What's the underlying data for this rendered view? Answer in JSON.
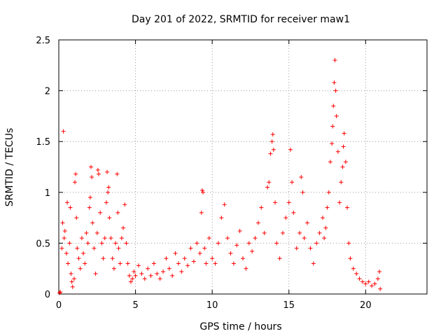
{
  "chart_data": {
    "type": "scatter",
    "title": "Day 201 of 2022, SRMTID for receiver maw1",
    "xlabel": "GPS time / hours",
    "ylabel": "SRMTID / TECUs",
    "xlim": [
      0,
      24
    ],
    "ylim": [
      0,
      2.5
    ],
    "x_ticks": [
      0,
      5,
      10,
      15,
      20
    ],
    "x_tick_labels": [
      "0",
      "5",
      "10",
      "15",
      "20"
    ],
    "y_ticks": [
      0,
      0.5,
      1,
      1.5,
      2,
      2.5
    ],
    "y_tick_labels": [
      "0",
      "0.5",
      "1",
      "1.5",
      "2",
      "2.5"
    ],
    "grid": true,
    "marker": "plus",
    "series_color": "#ff0000",
    "series": [
      {
        "name": "SRMTID",
        "points": [
          [
            0.05,
            0.01
          ],
          [
            0.1,
            0.02
          ],
          [
            0.2,
            0.45
          ],
          [
            0.25,
            0.7
          ],
          [
            0.3,
            1.6
          ],
          [
            0.35,
            0.55
          ],
          [
            0.4,
            0.62
          ],
          [
            0.5,
            0.4
          ],
          [
            0.55,
            0.9
          ],
          [
            0.6,
            0.3
          ],
          [
            0.7,
            0.5
          ],
          [
            0.75,
            0.85
          ],
          [
            0.8,
            0.2
          ],
          [
            0.85,
            0.12
          ],
          [
            0.9,
            0.07
          ],
          [
            1.0,
            0.15
          ],
          [
            1.05,
            1.1
          ],
          [
            1.1,
            1.18
          ],
          [
            1.15,
            0.75
          ],
          [
            1.2,
            0.45
          ],
          [
            1.3,
            0.35
          ],
          [
            1.4,
            0.25
          ],
          [
            1.5,
            0.55
          ],
          [
            1.6,
            0.4
          ],
          [
            1.7,
            0.3
          ],
          [
            1.8,
            0.6
          ],
          [
            1.9,
            0.5
          ],
          [
            2.0,
            0.85
          ],
          [
            2.05,
            0.95
          ],
          [
            2.1,
            1.25
          ],
          [
            2.15,
            1.15
          ],
          [
            2.2,
            0.7
          ],
          [
            2.3,
            0.45
          ],
          [
            2.4,
            0.2
          ],
          [
            2.5,
            0.6
          ],
          [
            2.55,
            1.22
          ],
          [
            2.6,
            1.18
          ],
          [
            2.7,
            0.8
          ],
          [
            2.8,
            0.5
          ],
          [
            2.9,
            0.35
          ],
          [
            3.0,
            0.55
          ],
          [
            3.1,
            0.9
          ],
          [
            3.15,
            1.2
          ],
          [
            3.2,
            1.0
          ],
          [
            3.25,
            1.05
          ],
          [
            3.3,
            0.75
          ],
          [
            3.4,
            0.55
          ],
          [
            3.5,
            0.35
          ],
          [
            3.6,
            0.25
          ],
          [
            3.7,
            0.5
          ],
          [
            3.8,
            1.18
          ],
          [
            3.85,
            0.8
          ],
          [
            3.9,
            0.45
          ],
          [
            4.0,
            0.3
          ],
          [
            4.1,
            0.55
          ],
          [
            4.2,
            0.65
          ],
          [
            4.3,
            0.88
          ],
          [
            4.4,
            0.5
          ],
          [
            4.5,
            0.3
          ],
          [
            4.6,
            0.18
          ],
          [
            4.7,
            0.12
          ],
          [
            4.8,
            0.15
          ],
          [
            4.9,
            0.22
          ],
          [
            5.0,
            0.18
          ],
          [
            5.2,
            0.28
          ],
          [
            5.4,
            0.2
          ],
          [
            5.6,
            0.15
          ],
          [
            5.8,
            0.25
          ],
          [
            6.0,
            0.18
          ],
          [
            6.2,
            0.3
          ],
          [
            6.4,
            0.2
          ],
          [
            6.6,
            0.15
          ],
          [
            6.8,
            0.22
          ],
          [
            7.0,
            0.35
          ],
          [
            7.2,
            0.25
          ],
          [
            7.4,
            0.18
          ],
          [
            7.6,
            0.4
          ],
          [
            7.8,
            0.3
          ],
          [
            8.0,
            0.22
          ],
          [
            8.2,
            0.35
          ],
          [
            8.4,
            0.28
          ],
          [
            8.6,
            0.45
          ],
          [
            8.8,
            0.32
          ],
          [
            9.0,
            0.5
          ],
          [
            9.2,
            0.4
          ],
          [
            9.3,
            0.8
          ],
          [
            9.35,
            1.02
          ],
          [
            9.4,
            1.0
          ],
          [
            9.5,
            0.45
          ],
          [
            9.6,
            0.3
          ],
          [
            9.8,
            0.55
          ],
          [
            10.0,
            0.35
          ],
          [
            10.2,
            0.3
          ],
          [
            10.4,
            0.5
          ],
          [
            10.6,
            0.75
          ],
          [
            10.8,
            0.88
          ],
          [
            11.0,
            0.55
          ],
          [
            11.2,
            0.4
          ],
          [
            11.4,
            0.3
          ],
          [
            11.6,
            0.48
          ],
          [
            11.8,
            0.62
          ],
          [
            12.0,
            0.35
          ],
          [
            12.2,
            0.25
          ],
          [
            12.4,
            0.5
          ],
          [
            12.6,
            0.42
          ],
          [
            12.8,
            0.55
          ],
          [
            13.0,
            0.7
          ],
          [
            13.2,
            0.85
          ],
          [
            13.4,
            0.6
          ],
          [
            13.6,
            1.05
          ],
          [
            13.7,
            1.1
          ],
          [
            13.8,
            1.38
          ],
          [
            13.9,
            1.5
          ],
          [
            13.95,
            1.57
          ],
          [
            14.0,
            1.42
          ],
          [
            14.1,
            0.9
          ],
          [
            14.2,
            0.5
          ],
          [
            14.4,
            0.35
          ],
          [
            14.6,
            0.6
          ],
          [
            14.8,
            0.75
          ],
          [
            15.0,
            0.9
          ],
          [
            15.1,
            1.42
          ],
          [
            15.2,
            1.1
          ],
          [
            15.3,
            0.8
          ],
          [
            15.5,
            0.45
          ],
          [
            15.7,
            0.6
          ],
          [
            15.8,
            1.15
          ],
          [
            15.9,
            1.0
          ],
          [
            16.0,
            0.55
          ],
          [
            16.2,
            0.7
          ],
          [
            16.4,
            0.45
          ],
          [
            16.6,
            0.3
          ],
          [
            16.8,
            0.5
          ],
          [
            17.0,
            0.6
          ],
          [
            17.2,
            0.75
          ],
          [
            17.3,
            0.55
          ],
          [
            17.4,
            0.65
          ],
          [
            17.5,
            0.85
          ],
          [
            17.6,
            1.0
          ],
          [
            17.7,
            1.3
          ],
          [
            17.8,
            1.48
          ],
          [
            17.85,
            1.65
          ],
          [
            17.9,
            1.85
          ],
          [
            17.95,
            2.08
          ],
          [
            18.0,
            2.3
          ],
          [
            18.05,
            2.0
          ],
          [
            18.1,
            1.75
          ],
          [
            18.2,
            1.4
          ],
          [
            18.3,
            0.9
          ],
          [
            18.4,
            1.1
          ],
          [
            18.5,
            1.25
          ],
          [
            18.55,
            1.45
          ],
          [
            18.6,
            1.58
          ],
          [
            18.7,
            1.3
          ],
          [
            18.8,
            0.85
          ],
          [
            18.9,
            0.5
          ],
          [
            19.0,
            0.35
          ],
          [
            19.2,
            0.25
          ],
          [
            19.4,
            0.2
          ],
          [
            19.6,
            0.15
          ],
          [
            19.8,
            0.12
          ],
          [
            20.0,
            0.1
          ],
          [
            20.2,
            0.12
          ],
          [
            20.4,
            0.08
          ],
          [
            20.6,
            0.1
          ],
          [
            20.8,
            0.15
          ],
          [
            20.9,
            0.22
          ],
          [
            20.95,
            0.05
          ]
        ]
      }
    ]
  }
}
